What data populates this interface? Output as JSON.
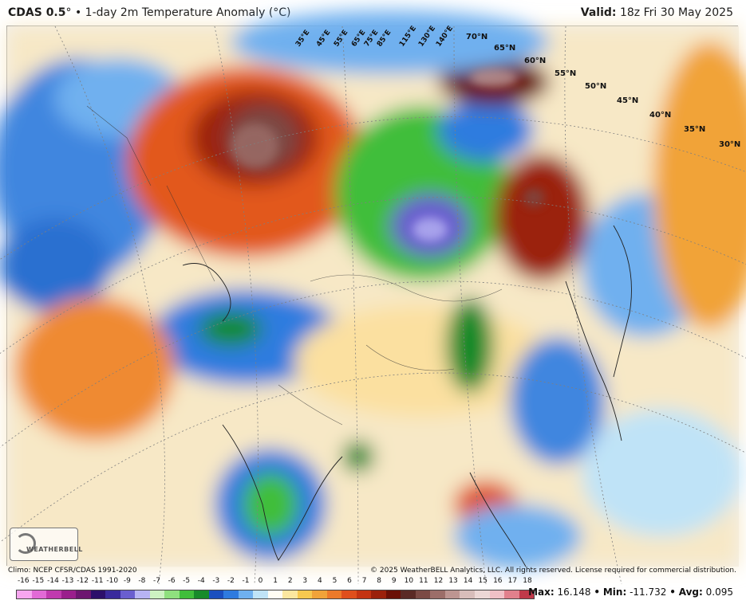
{
  "header": {
    "model": "CDAS 0.5",
    "degree": "°",
    "bullet": "•",
    "title": "1-day 2m Temperature Anomaly (°C)",
    "valid_label": "Valid:",
    "valid_value": "18z Fri 30 May 2025"
  },
  "map": {
    "lat_labels": [
      "70°N",
      "65°N",
      "60°N",
      "55°N",
      "50°N",
      "45°N",
      "40°N",
      "35°N",
      "30°N"
    ],
    "lon_labels": [
      "35°E",
      "45°E",
      "55°E",
      "65°E",
      "75°E",
      "85°E",
      "115°E",
      "130°E",
      "140°E"
    ],
    "logo_text": "WEATHERBELL"
  },
  "footer": {
    "climo": "Climo: NCEP CFSR/CDAS 1991-2020",
    "copyright": "© 2025 WeatherBELL Analytics, LLC. All rights reserved. License required for commercial distribution."
  },
  "legend": {
    "ticks": [
      "-16",
      "-15",
      "-14",
      "-13",
      "-12",
      "-11",
      "-10",
      "-9",
      "-8",
      "-7",
      "-6",
      "-5",
      "-4",
      "-3",
      "-2",
      "-1",
      "0",
      "1",
      "2",
      "3",
      "4",
      "5",
      "6",
      "7",
      "8",
      "9",
      "10",
      "11",
      "12",
      "13",
      "14",
      "15",
      "16",
      "17",
      "18"
    ],
    "colors": [
      "#f7a6f0",
      "#e26ad6",
      "#c03aae",
      "#9a1f8c",
      "#6d1770",
      "#2c0f6a",
      "#3a2a9c",
      "#6a5ecf",
      "#b7b3f3",
      "#cdf2c2",
      "#8fe07e",
      "#3fbe3b",
      "#178a2a",
      "#1b4fbf",
      "#2f7bdf",
      "#6fb0ef",
      "#bfe3f7",
      "#fffdf4",
      "#fbe7a0",
      "#f6c84f",
      "#f1a339",
      "#ec7a2a",
      "#df4f1c",
      "#c43412",
      "#9b210b",
      "#6b1006",
      "#5a2a25",
      "#7b4a44",
      "#9c6e69",
      "#bd9591",
      "#d8bdba",
      "#ecd7d5",
      "#f0c0c6",
      "#e1808c",
      "#c0394a"
    ],
    "max_label": "Max:",
    "max_value": "16.148",
    "min_label": "Min:",
    "min_value": "-11.732",
    "avg_label": "Avg:",
    "avg_value": "0.095",
    "sep": "•"
  }
}
